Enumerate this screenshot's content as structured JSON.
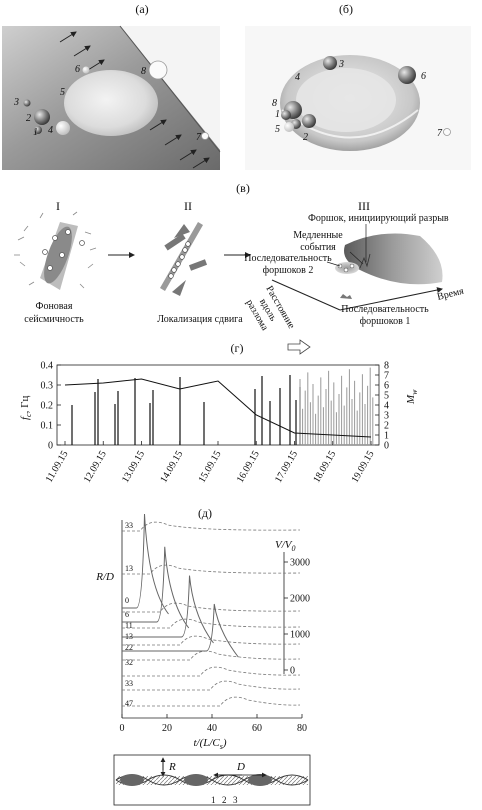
{
  "panel_a": {
    "label": "(а)",
    "numbers": [
      "1",
      "2",
      "3",
      "4",
      "5",
      "6",
      "7",
      "8"
    ]
  },
  "panel_b": {
    "label": "(б)",
    "numbers": [
      "1",
      "2",
      "3",
      "4",
      "5",
      "6",
      "7",
      "8"
    ]
  },
  "panel_c": {
    "label": "(в)",
    "stage_1": {
      "roman": "I",
      "caption_line1": "Фоновая",
      "caption_line2": "сейсмичность"
    },
    "stage_2": {
      "roman": "II",
      "caption": "Локализация сдвига"
    },
    "stage_3": {
      "roman": "III",
      "foreshock_label": "Форшок, инициирующий разрыв",
      "slow_events_line1": "Медленные",
      "slow_events_line2": "события",
      "seq2_line1": "Последовательность",
      "seq2_line2": "форшоков 2",
      "seq1_line1": "Последовательность",
      "seq1_line2": "форшоков 1",
      "axis_distance_line1": "Расстояние",
      "axis_distance_line2": "вдоль",
      "axis_distance_line3": "разлома",
      "axis_time": "Время"
    }
  },
  "panel_d": {
    "label": "(г)",
    "ylabel_left": "f_c, Гц",
    "ylabel_left_main": "f",
    "ylabel_left_sub": "c",
    "ylabel_left_unit": ", Гц",
    "ylabel_right_main": "M",
    "ylabel_right_sub": "w",
    "left_ticks": [
      "0.4",
      "0.3",
      "0.2",
      "0.1",
      "0"
    ],
    "right_ticks": [
      "8",
      "7",
      "6",
      "5",
      "4",
      "3",
      "2",
      "1",
      "0"
    ],
    "dates": [
      "11.09.15",
      "12.09.15",
      "13.09.15",
      "14.09.15",
      "15.09.15",
      "16.09.15",
      "17.09.15",
      "18.09.15",
      "19.09.15"
    ]
  },
  "panel_e": {
    "label": "(д)",
    "ylabel_left": "R/D",
    "ylabel_right": "V/V0",
    "ylabel_right_main": "V/V",
    "ylabel_right_sub": "0",
    "right_ticks": [
      "3000",
      "2000",
      "1000",
      "0"
    ],
    "left_numbers": [
      "33",
      "13",
      "0",
      "6",
      "11",
      "13",
      "22",
      "32",
      "33",
      "47"
    ],
    "xlabel_main": "t/(L/C",
    "xlabel_sub": "s",
    "xlabel_end": ")",
    "x_ticks": [
      "0",
      "20",
      "40",
      "60",
      "80"
    ]
  },
  "panel_f": {
    "label_R": "R",
    "label_D": "D",
    "numbers": [
      "1",
      "2",
      "3"
    ]
  },
  "chart_data": [
    {
      "type": "line",
      "panel": "(г)",
      "xlabel": "",
      "ylabel": "f_c, Гц",
      "ylabel_right": "M_w",
      "x": [
        "11.09.15",
        "12.09.15",
        "13.09.15",
        "14.09.15",
        "15.09.15",
        "16.09.15",
        "17.09.15",
        "18.09.15",
        "19.09.15"
      ],
      "ylim": [
        0,
        0.4
      ],
      "ylim_right": [
        0,
        8
      ],
      "series": [
        {
          "values": [
            0.3,
            0.31,
            0.33,
            0.28,
            0.32,
            0.15,
            0.06,
            0.05,
            0.04
          ]
        }
      ]
    },
    {
      "type": "line",
      "panel": "(д)",
      "xlabel": "t/(L/C_s)",
      "ylabel": "R/D",
      "ylabel_right": "V/V0",
      "x_ticks": [
        0,
        20,
        40,
        60,
        80
      ],
      "xlim": [
        0,
        80
      ],
      "ylim_right": [
        0,
        3000
      ],
      "series": [
        {
          "values": [
            0,
            3000,
            0
          ]
        },
        {
          "values": [
            0,
            2700,
            0
          ]
        },
        {
          "values": [
            0,
            2400,
            0
          ]
        },
        {
          "values": [
            0,
            2000,
            0
          ]
        }
      ]
    }
  ]
}
